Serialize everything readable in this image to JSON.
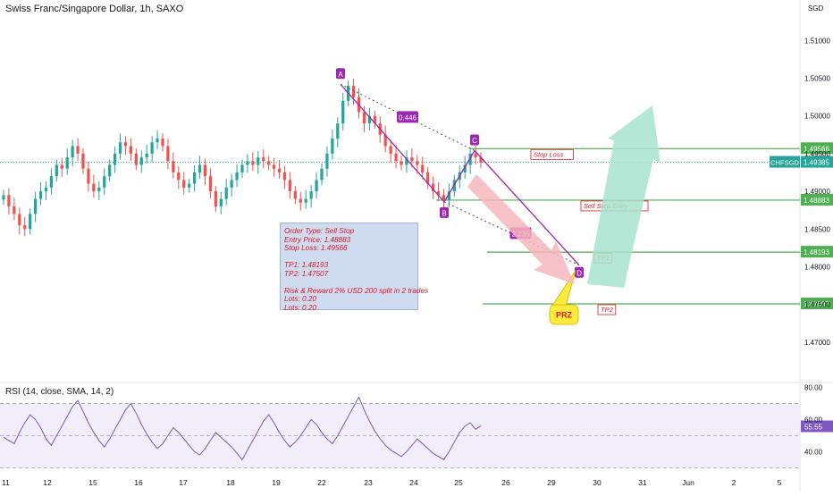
{
  "header": {
    "title": "Swiss Franc/Singapore Dollar, 1h, SAXO",
    "rsi_title": "RSI (14, close, SMA, 14, 2)"
  },
  "colors": {
    "bull": "#26a69a",
    "bear": "#ef5350",
    "pattern": "#9c27b0",
    "level_line": "#4caf50",
    "label_red": "#e0162b",
    "rsi_line": "#7e57c2",
    "sell_arrow": "#f7b6bd",
    "buy_arrow": "#a8e3cf",
    "prz_fill": "#ffeb3b",
    "order_box": "#cfdcef"
  },
  "chart_data": [
    {
      "type": "candlestick",
      "symbol": "CHFSGD",
      "price_scale_unit": "SGD",
      "price_range": [
        1.465,
        1.513
      ],
      "y_ticks": [
        "1.51000",
        "1.50500",
        "1.50000",
        "1.49500",
        "1.49000",
        "1.48500",
        "1.48000",
        "1.47500",
        "1.47000"
      ],
      "x_ticks": [
        "11",
        "12",
        "15",
        "16",
        "17",
        "18",
        "19",
        "22",
        "23",
        "24",
        "25",
        "26",
        "29",
        "30",
        "31",
        "Jun",
        "2",
        "5"
      ],
      "current_price": "1.49385",
      "current_price_label": "CHFSGD",
      "close_series_approx": [
        1.4895,
        1.488,
        1.487,
        1.4855,
        1.485,
        1.487,
        1.489,
        1.49,
        1.4905,
        1.492,
        1.4935,
        1.493,
        1.4945,
        1.496,
        1.495,
        1.493,
        1.491,
        1.49,
        1.4905,
        1.492,
        1.4935,
        1.495,
        1.4965,
        1.496,
        1.495,
        1.4935,
        1.4945,
        1.495,
        1.4965,
        1.497,
        1.496,
        1.494,
        1.4925,
        1.4915,
        1.4905,
        1.491,
        1.4925,
        1.4935,
        1.492,
        1.49,
        1.488,
        1.489,
        1.4905,
        1.4915,
        1.4925,
        1.4935,
        1.494,
        1.4935,
        1.4945,
        1.494,
        1.4935,
        1.493,
        1.4925,
        1.4915,
        1.49,
        1.489,
        1.4885,
        1.489,
        1.49,
        1.4915,
        1.493,
        1.495,
        1.497,
        1.499,
        1.502,
        1.504,
        1.5025,
        1.5005,
        1.499,
        1.5,
        1.499,
        1.4975,
        1.496,
        1.495,
        1.494,
        1.4935,
        1.4945,
        1.494,
        1.4935,
        1.4925,
        1.491,
        1.49,
        1.4895,
        1.4888,
        1.49,
        1.4915,
        1.4925,
        1.4935,
        1.495,
        1.4945,
        1.4938
      ],
      "price_labels": [
        {
          "text": "1.49566",
          "value": 1.49566
        },
        {
          "text": "1.48883",
          "value": 1.48883
        },
        {
          "text": "1.48193",
          "value": 1.48193
        },
        {
          "text": "1.47507",
          "value": 1.47507
        }
      ],
      "levels": [
        {
          "label": "Stop Loss",
          "value": 1.49566
        },
        {
          "label": "Sell Stop Entry",
          "value": 1.48883
        },
        {
          "label": "TP1",
          "value": 1.48193
        },
        {
          "label": "TP2",
          "value": 1.47507
        }
      ],
      "pattern": {
        "name": "ABCD",
        "points": [
          {
            "label": "A",
            "value": 1.5042
          },
          {
            "label": "B",
            "value": 1.4886
          },
          {
            "label": "C",
            "value": 1.4954
          },
          {
            "label": "D",
            "value": 1.4802
          }
        ],
        "ratios": [
          "0.446",
          "2.235"
        ],
        "zone_label": "PRZ"
      },
      "order_note": [
        "Order Type: Sell Stop",
        "Entry Price: 1.48883",
        "Stop Loss: 1.49566",
        "",
        "TP1: 1.48193",
        "TP2: 1.47507",
        "",
        "Risk & Reward 2% USD 200 split in 2 trades",
        "Lots: 0.20",
        "Lots: 0.20"
      ]
    },
    {
      "type": "line",
      "indicator": "RSI",
      "range": [
        28,
        82
      ],
      "y_ticks": [
        "80.00",
        "60.00",
        "40.00"
      ],
      "bands": [
        30,
        50,
        70
      ],
      "last_value": "55.55",
      "values_approx": [
        49,
        47,
        45,
        52,
        58,
        63,
        60,
        55,
        48,
        44,
        50,
        56,
        62,
        68,
        72,
        65,
        58,
        52,
        47,
        43,
        48,
        54,
        60,
        66,
        70,
        64,
        57,
        51,
        46,
        42,
        45,
        50,
        55,
        52,
        48,
        44,
        40,
        38,
        42,
        47,
        52,
        49,
        46,
        43,
        39,
        35,
        41,
        47,
        53,
        59,
        63,
        58,
        52,
        47,
        43,
        46,
        50,
        55,
        60,
        57,
        52,
        48,
        45,
        50,
        56,
        62,
        68,
        74,
        66,
        59,
        53,
        48,
        44,
        41,
        39,
        37,
        40,
        44,
        48,
        45,
        42,
        39,
        37,
        35,
        40,
        46,
        52,
        56,
        58,
        54,
        56
      ]
    }
  ]
}
